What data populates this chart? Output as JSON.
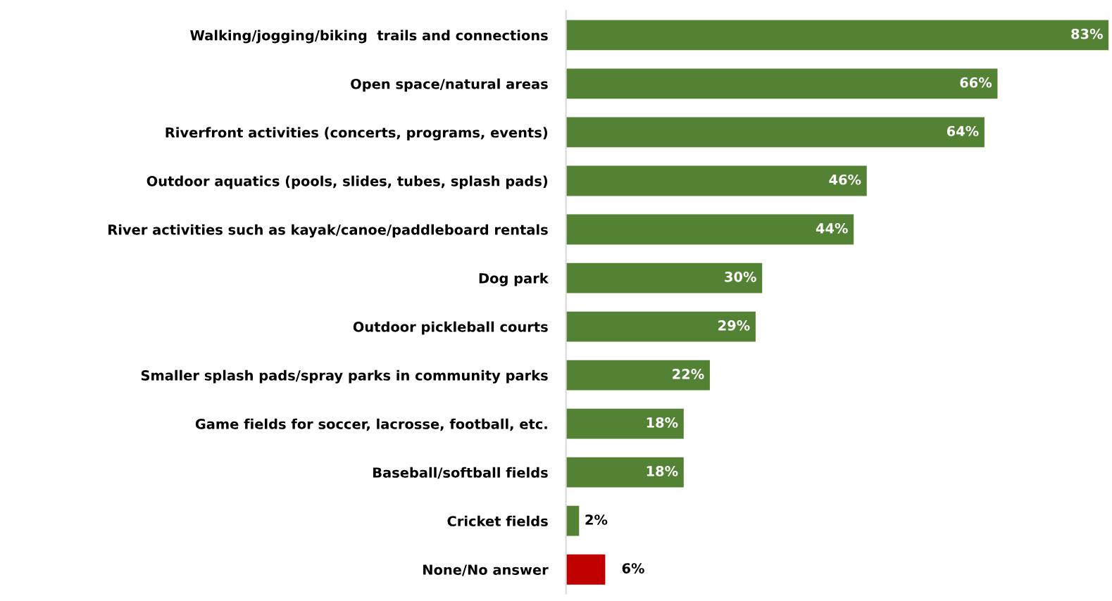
{
  "chart_data": {
    "type": "bar",
    "orientation": "horizontal",
    "categories": [
      "Walking/jogging/biking  trails and connections",
      "Open space/natural areas",
      "Riverfront activities (concerts, programs, events)",
      "Outdoor aquatics (pools, slides, tubes, splash pads)",
      "River activities such as kayak/canoe/paddleboard rentals",
      "Dog park",
      "Outdoor pickleball courts",
      "Smaller splash pads/spray parks in community parks",
      "Game fields for soccer, lacrosse, football, etc.",
      "Baseball/softball fields",
      "Cricket fields",
      "None/No answer"
    ],
    "values": [
      83,
      66,
      64,
      46,
      44,
      30,
      29,
      22,
      18,
      18,
      2,
      6
    ],
    "value_labels": [
      "83%",
      "66%",
      "64%",
      "46%",
      "44%",
      "30%",
      "29%",
      "22%",
      "18%",
      "18%",
      "2%",
      "6%"
    ],
    "colors": [
      "#548235",
      "#548235",
      "#548235",
      "#548235",
      "#548235",
      "#548235",
      "#548235",
      "#548235",
      "#548235",
      "#548235",
      "#548235",
      "#c00000"
    ],
    "grid": false,
    "legend": false
  }
}
